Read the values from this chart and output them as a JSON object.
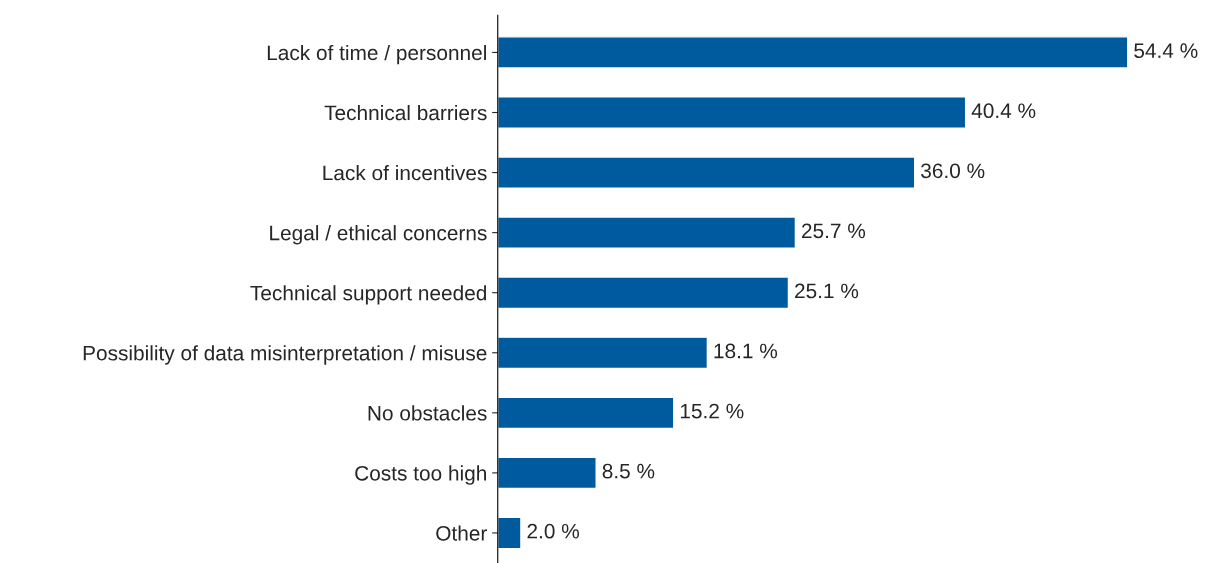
{
  "chart_data": {
    "type": "bar",
    "orientation": "horizontal",
    "categories": [
      "Lack of time / personnel",
      "Technical barriers",
      "Lack of incentives",
      "Legal / ethical concerns",
      "Technical support needed",
      "Possibility of data misinterpretation / misuse",
      "No obstacles",
      "Costs too high",
      "Other"
    ],
    "values": [
      54.4,
      40.4,
      36.0,
      25.7,
      25.1,
      18.1,
      15.2,
      8.5,
      2.0
    ],
    "value_labels": [
      "54.4 %",
      "40.4 %",
      "36.0 %",
      "25.7 %",
      "25.1 %",
      "18.1 %",
      "15.2 %",
      "8.5 %",
      "2.0 %"
    ],
    "color": "#005a9e",
    "grid": false,
    "legend": false,
    "tick_labels": "y"
  }
}
